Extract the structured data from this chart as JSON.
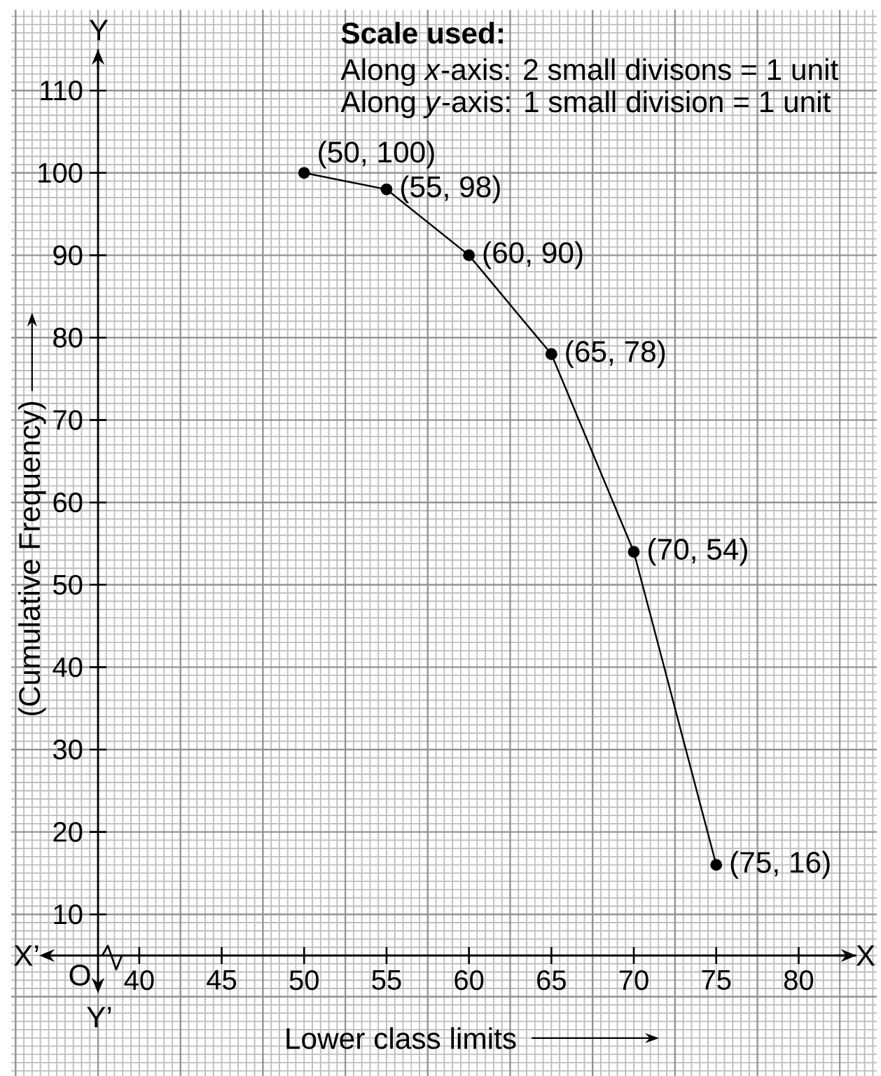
{
  "chart_data": {
    "type": "line",
    "xlabel": "Lower class limits",
    "ylabel": "(Cumulative Frequency)",
    "x": [
      50,
      55,
      60,
      65,
      70,
      75
    ],
    "values": [
      100,
      98,
      90,
      78,
      54,
      16
    ],
    "value_labels": [
      "(50, 100)",
      "(55, 98)",
      "(60, 90)",
      "(65, 78)",
      "(70, 54)",
      "(75, 16)"
    ],
    "color": "#000000",
    "marker": "circle",
    "line_style": "solid",
    "xlim": [
      37.5,
      83.5
    ],
    "ylim": [
      5,
      115
    ],
    "xticks": [
      40,
      45,
      50,
      55,
      60,
      65,
      70,
      75,
      80
    ],
    "yticks": [
      10,
      20,
      30,
      40,
      50,
      60,
      70,
      80,
      90,
      100,
      110
    ],
    "grid": true,
    "annotations": [
      "Scale used:",
      "Along *x*-axis: 2 small divisons = 1 unit",
      "Along *y*-axis: 1 small division = 1 unit",
      "X’",
      "X",
      "Y",
      "Y’",
      "O"
    ]
  }
}
